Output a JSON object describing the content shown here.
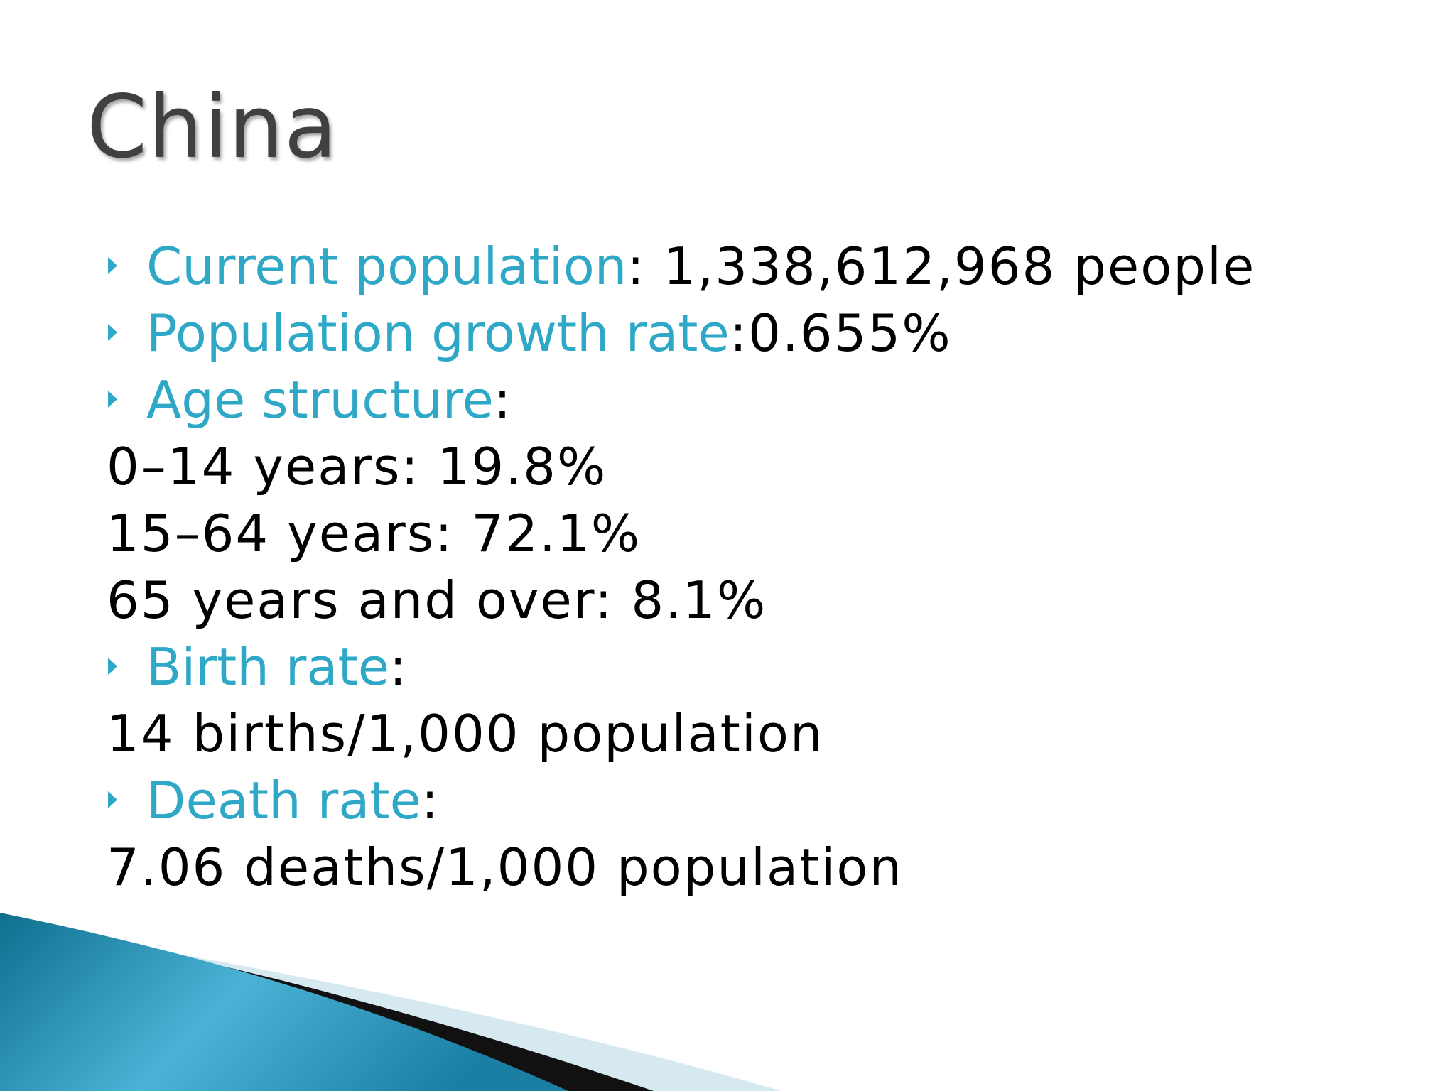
{
  "title": "China",
  "items": [
    {
      "label": "Current population",
      "text": ": 1,338,612,968 people"
    },
    {
      "label": "Population growth rate",
      "text": ":0.655%"
    },
    {
      "label": "Age structure",
      "text": ":",
      "lines": [
        "0–14 years: 19.8%",
        "15–64 years: 72.1%",
        "65 years and over: 8.1%"
      ]
    },
    {
      "label": "Birth rate",
      "text": ":",
      "lines": [
        "14 births/1,000 population"
      ]
    },
    {
      "label": "Death rate",
      "text": ":",
      "lines": [
        "7.06 deaths/1,000 population"
      ]
    }
  ]
}
